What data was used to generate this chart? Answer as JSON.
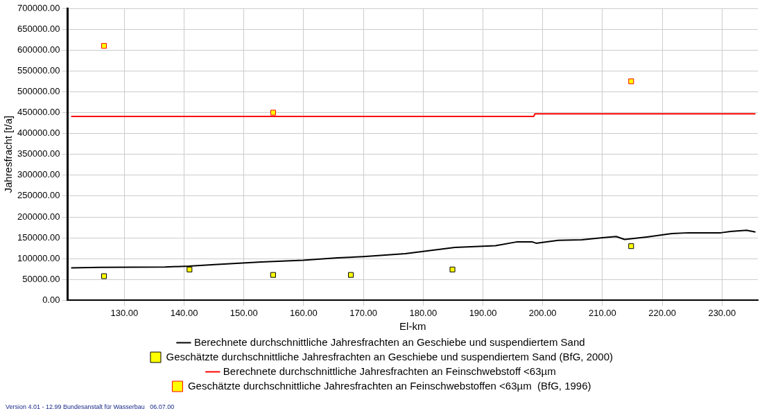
{
  "chart_data": {
    "type": "line",
    "xlabel": "El-km",
    "ylabel": "Jahresfracht [t/a]",
    "xlim": [
      120.5,
      236
    ],
    "xticks": [
      {
        "value": 130,
        "label": "130.00"
      },
      {
        "value": 140,
        "label": "140.00"
      },
      {
        "value": 150,
        "label": "150.00"
      },
      {
        "value": 160,
        "label": "160.00"
      },
      {
        "value": 170,
        "label": "170.00"
      },
      {
        "value": 180,
        "label": "180.00"
      },
      {
        "value": 190,
        "label": "190.00"
      },
      {
        "value": 200,
        "label": "200.00"
      },
      {
        "value": 210,
        "label": "210.00"
      },
      {
        "value": 220,
        "label": "220.00"
      },
      {
        "value": 230,
        "label": "230.00"
      }
    ],
    "ylim": [
      0,
      700000
    ],
    "yticks": [
      {
        "value": 0,
        "label": "0.00"
      },
      {
        "value": 50000,
        "label": "50000.00"
      },
      {
        "value": 100000,
        "label": "100000.00"
      },
      {
        "value": 150000,
        "label": "150000.00"
      },
      {
        "value": 200000,
        "label": "200000.00"
      },
      {
        "value": 250000,
        "label": "250000.00"
      },
      {
        "value": 300000,
        "label": "300000.00"
      },
      {
        "value": 350000,
        "label": "350000.00"
      },
      {
        "value": 400000,
        "label": "400000.00"
      },
      {
        "value": 450000,
        "label": "450000.00"
      },
      {
        "value": 500000,
        "label": "500000.00"
      },
      {
        "value": 550000,
        "label": "550000.00"
      },
      {
        "value": 600000,
        "label": "600000.00"
      },
      {
        "value": 650000,
        "label": "650000.00"
      },
      {
        "value": 700000,
        "label": "700000.00"
      }
    ],
    "grid": true,
    "legend": "bottom",
    "series": [
      {
        "type": "line",
        "name": "Berechnete durchschnittliche Jahresfrachten an Geschiebe und suspendiertem Sand",
        "color": "#000000",
        "marker": "none",
        "x": [
          121.1,
          125.9,
          136.8,
          140.8,
          145.1,
          152.9,
          159.9,
          165.7,
          170.0,
          177.0,
          185.3,
          192.1,
          195.6,
          198.3,
          198.9,
          202.6,
          206.5,
          210.0,
          212.3,
          213.7,
          217.4,
          221.6,
          224.4,
          229.8,
          231.4,
          234.1,
          235.6
        ],
        "values": [
          78000,
          79000,
          80000,
          82000,
          86000,
          92000,
          96000,
          102000,
          105000,
          112000,
          127000,
          131000,
          140000,
          140000,
          137000,
          144000,
          145000,
          150000,
          153000,
          146000,
          152000,
          160000,
          162000,
          162000,
          165000,
          168000,
          164000
        ]
      },
      {
        "type": "scatter",
        "name": "Geschätzte durchschnittliche Jahresfrachten an Geschiebe und suspendiertem Sand (BfG, 2000)",
        "color": "#ffff00",
        "marker": "square",
        "x": [
          126.6,
          140.9,
          154.9,
          167.9,
          184.9,
          214.8
        ],
        "values": [
          58000,
          74000,
          61000,
          61000,
          74000,
          130000
        ]
      },
      {
        "type": "line",
        "name": "Berechnete durchschnittliche Jahresfrachten an Feinschwebstoff <63µm",
        "color": "#ff0000",
        "marker": "none",
        "x": [
          121.1,
          198.5,
          198.7,
          235.6
        ],
        "values": [
          441000,
          441000,
          447000,
          447000
        ]
      },
      {
        "type": "scatter",
        "name": "Geschätzte durchschnittliche Jahresfrachten an Feinschwebstoffen <63µm  (BfG, 1996)",
        "color": "#ffff00",
        "marker": "square",
        "x": [
          126.6,
          154.9,
          214.8
        ],
        "values": [
          610000,
          450000,
          525000
        ]
      }
    ],
    "annotations": [
      "Version 4.01 - 12.99 Bundesanstalt für Wasserbau   06.07.00"
    ]
  }
}
